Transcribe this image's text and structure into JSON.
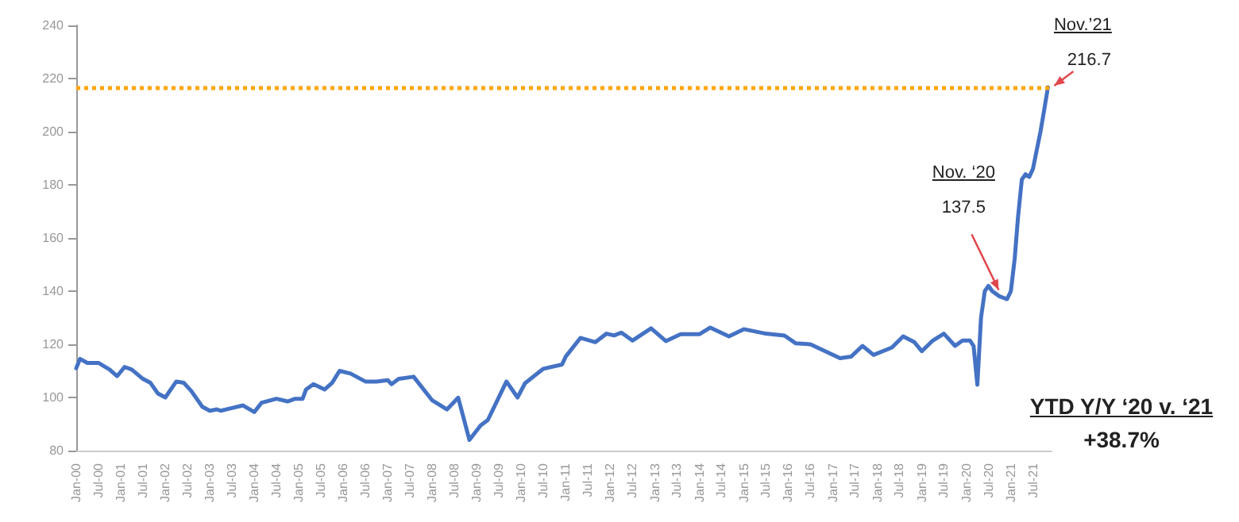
{
  "chart_data": {
    "type": "line",
    "x": [
      "2000-01",
      "2000-02",
      "2000-04",
      "2000-07",
      "2000-10",
      "2000-12",
      "2001-02",
      "2001-04",
      "2001-07",
      "2001-09",
      "2001-11",
      "2002-01",
      "2002-04",
      "2002-06",
      "2002-08",
      "2002-11",
      "2003-01",
      "2003-03",
      "2003-04",
      "2003-07",
      "2003-10",
      "2004-01",
      "2004-03",
      "2004-07",
      "2004-10",
      "2004-12",
      "2005-02",
      "2005-03",
      "2005-05",
      "2005-08",
      "2005-10",
      "2005-12",
      "2006-03",
      "2006-07",
      "2006-10",
      "2007-01",
      "2007-02",
      "2007-04",
      "2007-08",
      "2008-01",
      "2008-05",
      "2008-08",
      "2008-11",
      "2009-02",
      "2009-04",
      "2009-09",
      "2009-12",
      "2010-02",
      "2010-07",
      "2010-12",
      "2011-01",
      "2011-05",
      "2011-09",
      "2011-12",
      "2012-02",
      "2012-04",
      "2012-07",
      "2012-12",
      "2013-04",
      "2013-08",
      "2014-01",
      "2014-04",
      "2014-09",
      "2015-01",
      "2015-07",
      "2015-12",
      "2016-03",
      "2016-07",
      "2017-03",
      "2017-06",
      "2017-09",
      "2017-12",
      "2018-05",
      "2018-08",
      "2018-11",
      "2019-01",
      "2019-04",
      "2019-07",
      "2019-10",
      "2019-12",
      "2020-02",
      "2020-03",
      "2020-04",
      "2020-05",
      "2020-06",
      "2020-07",
      "2020-08",
      "2020-09",
      "2020-10",
      "2020-11",
      "2020-12",
      "2021-01",
      "2021-02",
      "2021-03",
      "2021-04",
      "2021-05",
      "2021-06",
      "2021-07",
      "2021-08",
      "2021-09",
      "2021-10",
      "2021-11"
    ],
    "series": [
      {
        "color": "#4472c4",
        "values": [
          111,
          114.5,
          113,
          113,
          110.5,
          108,
          111.5,
          110.5,
          107,
          105.5,
          101.5,
          100,
          106,
          105.5,
          102.5,
          96.5,
          95,
          95.5,
          95,
          96,
          97,
          94.5,
          98,
          99.5,
          98.5,
          99.5,
          99.5,
          103,
          105,
          103,
          105.5,
          110,
          109,
          106,
          106,
          106.5,
          105,
          107,
          107.8,
          98.9,
          95.5,
          99.9,
          84,
          89.5,
          91.5,
          106,
          100,
          105.4,
          110.8,
          112.4,
          115.4,
          122.4,
          120.8,
          124,
          123.3,
          124.4,
          121.4,
          126,
          121.2,
          123.8,
          123.8,
          126.3,
          123,
          125.7,
          124,
          123.3,
          120.4,
          120,
          114.8,
          115.4,
          119.4,
          116,
          118.8,
          123,
          120.8,
          117.4,
          121.4,
          124,
          119.4,
          121.4,
          121.4,
          119.4,
          104.8,
          130,
          140,
          142,
          140,
          139,
          138,
          137.5,
          137,
          140,
          152,
          168,
          182,
          184,
          183,
          186,
          193,
          200,
          208,
          216.7
        ]
      }
    ],
    "xlim": [
      "2000-01",
      "2021-12"
    ],
    "xticks": [
      {
        "value": "2000-01",
        "label": "Jan-00"
      },
      {
        "value": "2000-07",
        "label": "Jul-00"
      },
      {
        "value": "2001-01",
        "label": "Jan-01"
      },
      {
        "value": "2001-07",
        "label": "Jul-01"
      },
      {
        "value": "2002-01",
        "label": "Jan-02"
      },
      {
        "value": "2002-07",
        "label": "Jul-02"
      },
      {
        "value": "2003-01",
        "label": "Jan-03"
      },
      {
        "value": "2003-07",
        "label": "Jul-03"
      },
      {
        "value": "2004-01",
        "label": "Jan-04"
      },
      {
        "value": "2004-07",
        "label": "Jul-04"
      },
      {
        "value": "2005-01",
        "label": "Jan-05"
      },
      {
        "value": "2005-07",
        "label": "Jul-05"
      },
      {
        "value": "2006-01",
        "label": "Jan-06"
      },
      {
        "value": "2006-07",
        "label": "Jul-06"
      },
      {
        "value": "2007-01",
        "label": "Jan-07"
      },
      {
        "value": "2007-07",
        "label": "Jul-07"
      },
      {
        "value": "2008-01",
        "label": "Jan-08"
      },
      {
        "value": "2008-07",
        "label": "Jul-08"
      },
      {
        "value": "2009-01",
        "label": "Jan-09"
      },
      {
        "value": "2009-07",
        "label": "Jul-09"
      },
      {
        "value": "2010-01",
        "label": "Jan-10"
      },
      {
        "value": "2010-07",
        "label": "Jul-10"
      },
      {
        "value": "2011-01",
        "label": "Jan-11"
      },
      {
        "value": "2011-07",
        "label": "Jul-11"
      },
      {
        "value": "2012-01",
        "label": "Jan-12"
      },
      {
        "value": "2012-07",
        "label": "Jul-12"
      },
      {
        "value": "2013-01",
        "label": "Jan-13"
      },
      {
        "value": "2013-07",
        "label": "Jul-13"
      },
      {
        "value": "2014-01",
        "label": "Jan-14"
      },
      {
        "value": "2014-07",
        "label": "Jul-14"
      },
      {
        "value": "2015-01",
        "label": "Jan-15"
      },
      {
        "value": "2015-07",
        "label": "Jul-15"
      },
      {
        "value": "2016-01",
        "label": "Jan-16"
      },
      {
        "value": "2016-07",
        "label": "Jul-16"
      },
      {
        "value": "2017-01",
        "label": "Jan-17"
      },
      {
        "value": "2017-07",
        "label": "Jul-17"
      },
      {
        "value": "2018-01",
        "label": "Jan-18"
      },
      {
        "value": "2018-07",
        "label": "Jul-18"
      },
      {
        "value": "2019-01",
        "label": "Jan-19"
      },
      {
        "value": "2019-07",
        "label": "Jul-19"
      },
      {
        "value": "2020-01",
        "label": "Jan-20"
      },
      {
        "value": "2020-07",
        "label": "Jul-20"
      },
      {
        "value": "2021-01",
        "label": "Jan-21"
      },
      {
        "value": "2021-07",
        "label": "Jul-21"
      }
    ],
    "ylim": [
      80,
      240
    ],
    "yticks": [
      80,
      100,
      120,
      140,
      160,
      180,
      200,
      220,
      240
    ],
    "ref_lines": [
      {
        "axis": "y",
        "value": 216.7,
        "color": "#ffa500",
        "line_style": "dotted"
      }
    ],
    "annotations": [
      "Nov.’21",
      {
        "text": "216.7",
        "x": "2021-11",
        "y": 216.7
      },
      "Nov. ‘20",
      {
        "text": "137.5",
        "x": "2020-11",
        "y": 137.5
      },
      "YTD Y/Y ‘20 v. ‘21",
      "+38.7%"
    ],
    "grid": false,
    "marker": "none",
    "line_style": "solid"
  }
}
